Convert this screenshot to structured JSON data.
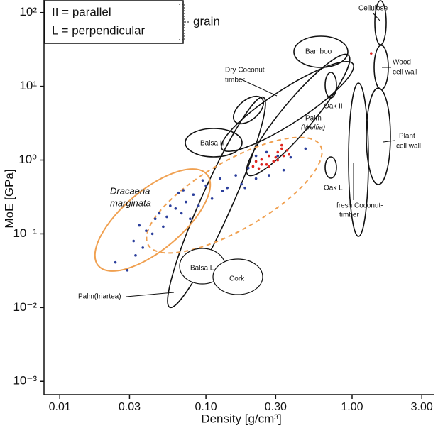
{
  "chart_data": {
    "type": "scatter",
    "xlabel": "Density [g/cm³]",
    "ylabel": "MoE [GPa]",
    "xscale": "log",
    "yscale": "log",
    "xlim": [
      0.0078,
      3.66
    ],
    "ylim": [
      0.00066,
      148
    ],
    "xticks": [
      0.01,
      0.03,
      {
        "value": 0.1,
        "label": "0.10"
      },
      {
        "value": 0.3,
        "label": "0.30"
      },
      {
        "value": 1,
        "label": "1.00"
      },
      {
        "value": 3,
        "label": "3.00"
      }
    ],
    "yticks": [
      {
        "value": 100,
        "label": "10²"
      },
      {
        "value": 10,
        "label": "10¹"
      },
      {
        "value": 1,
        "label": "10⁰"
      },
      {
        "value": 0.1,
        "label": "10⁻¹"
      },
      {
        "value": 0.01,
        "label": "10⁻²"
      },
      {
        "value": 0.001,
        "label": "10⁻³"
      }
    ],
    "legend_lines": [
      "II = parallel",
      "L = perpendicular",
      "grain"
    ],
    "region_labels": [
      "Cellulose",
      "Wood",
      "cell wall",
      "Bamboo",
      "Dry Coconut-",
      "timber",
      "Oak II",
      "Palm",
      "(Welfia)",
      "Plant",
      "cell wall",
      "Balsa II",
      "Dracaena",
      "marginata",
      "Oak L",
      "fresh Coconut-",
      "timber",
      "Balsa L",
      "Cork",
      "Palm(Iriartea)"
    ],
    "series": [
      {
        "color": "#2b3f9c",
        "x": [
          0.024,
          0.029,
          0.032,
          0.037,
          0.039,
          0.043,
          0.045,
          0.048,
          0.054,
          0.057,
          0.062,
          0.068,
          0.073,
          0.078,
          0.082,
          0.089,
          0.1,
          0.11,
          0.125,
          0.14,
          0.16,
          0.175,
          0.195,
          0.22,
          0.24,
          0.27,
          0.31,
          0.34,
          0.38,
          0.48,
          0.033,
          0.051,
          0.035,
          0.07,
          0.095,
          0.22,
          0.26,
          0.185,
          0.065,
          0.13
        ],
        "y": [
          0.041,
          0.032,
          0.08,
          0.065,
          0.11,
          0.1,
          0.16,
          0.19,
          0.17,
          0.24,
          0.22,
          0.19,
          0.27,
          0.16,
          0.34,
          0.24,
          0.45,
          0.3,
          0.56,
          0.42,
          0.62,
          0.47,
          0.78,
          0.56,
          0.87,
          0.62,
          1.14,
          0.73,
          1.09,
          1.43,
          0.051,
          0.125,
          0.13,
          0.39,
          0.53,
          1.14,
          1.28,
          0.42,
          0.36,
          0.38
        ]
      },
      {
        "color": "#e0241e",
        "x": [
          0.21,
          0.22,
          0.23,
          0.24,
          0.26,
          0.27,
          0.29,
          0.31,
          0.31,
          0.33,
          0.34,
          0.36,
          0.37,
          0.27,
          0.24,
          0.33,
          0.3,
          1.35
        ],
        "y": [
          0.82,
          0.96,
          0.77,
          1.02,
          0.87,
          1.14,
          0.96,
          1.28,
          1.0,
          1.43,
          1.14,
          1.36,
          1.19,
          0.82,
          0.87,
          1.59,
          1.09,
          28
        ]
      }
    ]
  }
}
